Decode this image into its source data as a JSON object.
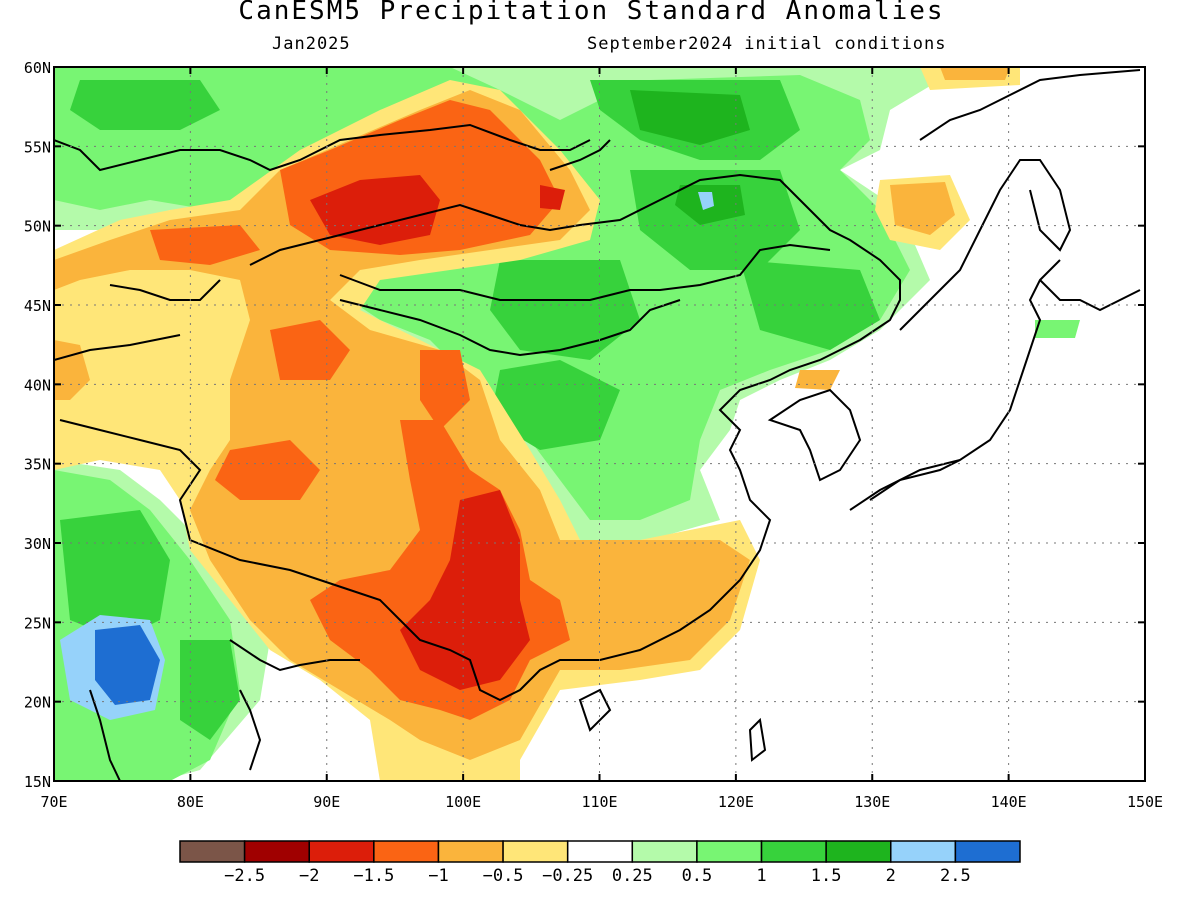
{
  "title": "CanESM5 Precipitation Standard Anomalies",
  "subtitle_left": "Jan2025",
  "subtitle_right": "September2024 initial conditions",
  "map": {
    "lon_range": [
      70,
      150
    ],
    "lat_range": [
      15,
      60
    ],
    "lon_ticks": [
      "70E",
      "80E",
      "90E",
      "100E",
      "110E",
      "120E",
      "130E",
      "140E",
      "150E"
    ],
    "lat_ticks": [
      "15N",
      "20N",
      "25N",
      "30N",
      "35N",
      "40N",
      "45N",
      "50N",
      "55N",
      "60N"
    ],
    "gridlines": "dotted"
  },
  "colorbar": {
    "colors": [
      "#7b5548",
      "#a00000",
      "#dc1e0a",
      "#fa6414",
      "#fab43c",
      "#ffe678",
      "#ffffff",
      "#b4faaa",
      "#78f573",
      "#37d23c",
      "#1eb41e",
      "#96d2fa",
      "#1e6ed2"
    ],
    "labels": [
      "-2.5",
      "-2",
      "-1.5",
      "-1",
      "-0.5",
      "-0.25",
      "0.25",
      "0.5",
      "1",
      "1.5",
      "2",
      "2.5"
    ]
  }
}
